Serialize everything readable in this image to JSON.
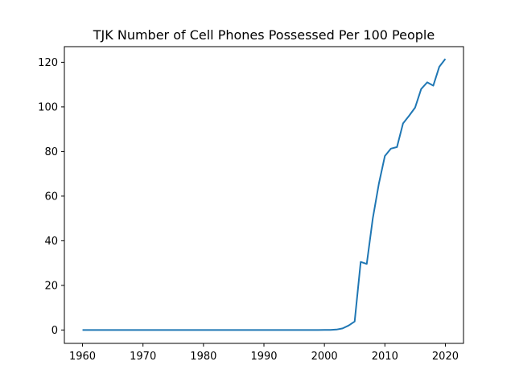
{
  "chart_data": {
    "type": "line",
    "title": "TJK Number of Cell Phones Possessed Per 100 People",
    "xlabel": "",
    "ylabel": "",
    "xlim": [
      1957,
      2023
    ],
    "ylim": [
      -6,
      127
    ],
    "x_ticks": [
      "1960",
      "1970",
      "1980",
      "1990",
      "2000",
      "2010",
      "2020"
    ],
    "y_ticks": [
      "0",
      "20",
      "40",
      "60",
      "80",
      "100",
      "120"
    ],
    "grid": false,
    "series": [
      {
        "color": "#1f77b4",
        "x": [
          1960,
          1961,
          1962,
          1963,
          1964,
          1965,
          1966,
          1967,
          1968,
          1969,
          1970,
          1971,
          1972,
          1973,
          1974,
          1975,
          1976,
          1977,
          1978,
          1979,
          1980,
          1981,
          1982,
          1983,
          1984,
          1985,
          1986,
          1987,
          1988,
          1989,
          1990,
          1991,
          1992,
          1993,
          1994,
          1995,
          1996,
          1997,
          1998,
          1999,
          2000,
          2001,
          2002,
          2003,
          2004,
          2005,
          2006,
          2007,
          2008,
          2009,
          2010,
          2011,
          2012,
          2013,
          2014,
          2015,
          2016,
          2017,
          2018,
          2019,
          2020
        ],
        "y": [
          0,
          0,
          0,
          0,
          0,
          0,
          0,
          0,
          0,
          0,
          0,
          0,
          0,
          0,
          0,
          0,
          0,
          0,
          0,
          0,
          0,
          0,
          0,
          0,
          0,
          0,
          0,
          0,
          0,
          0,
          0,
          0,
          0,
          0,
          0,
          0,
          0,
          0,
          0,
          0,
          0.02,
          0.03,
          0.2,
          0.7,
          2.0,
          3.8,
          30.5,
          29.6,
          50.0,
          65.5,
          78.0,
          81.3,
          82.0,
          92.6,
          96.0,
          99.7,
          108.0,
          111.0,
          109.5,
          118.0,
          121.5
        ]
      }
    ]
  }
}
